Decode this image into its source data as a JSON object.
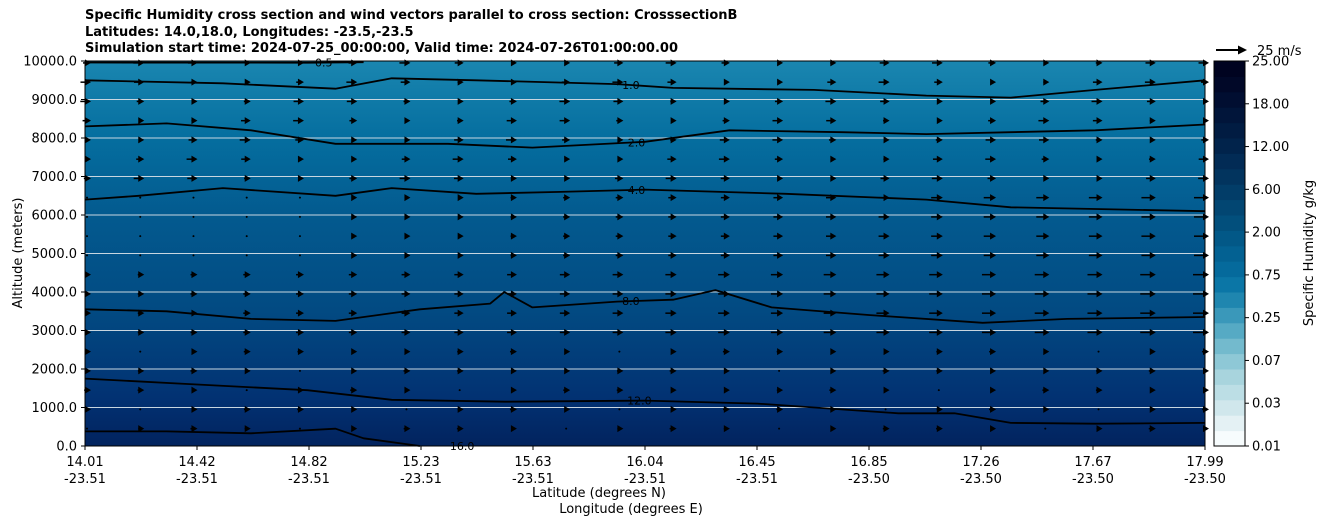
{
  "chart_data": {
    "type": "contour",
    "title_lines": [
      "Specific Humidity cross section and wind vectors parallel to cross section: CrosssectionB",
      "Latitudes: 14.0,18.0, Longitudes: -23.5,-23.5",
      "Simulation start time: 2024-07-25_00:00:00, Valid time: 2024-07-26T01:00:00.00"
    ],
    "xlabel_lines": [
      "Latitude (degrees N)",
      "Longitude (degrees E)"
    ],
    "ylabel": "Altitude (meters)",
    "ylim": [
      0,
      10000
    ],
    "y_ticks": [
      0,
      1000,
      2000,
      3000,
      4000,
      5000,
      6000,
      7000,
      8000,
      9000,
      10000
    ],
    "y_tick_labels": [
      "0.0",
      "1000.0",
      "2000.0",
      "3000.0",
      "4000.0",
      "5000.0",
      "6000.0",
      "7000.0",
      "8000.0",
      "9000.0",
      "10000.0"
    ],
    "grid": "horizontal",
    "x_ticks": [
      {
        "lat": "14.01",
        "lon": "-23.51"
      },
      {
        "lat": "14.42",
        "lon": "-23.51"
      },
      {
        "lat": "14.82",
        "lon": "-23.51"
      },
      {
        "lat": "15.23",
        "lon": "-23.51"
      },
      {
        "lat": "15.63",
        "lon": "-23.51"
      },
      {
        "lat": "16.04",
        "lon": "-23.51"
      },
      {
        "lat": "16.45",
        "lon": "-23.51"
      },
      {
        "lat": "16.85",
        "lon": "-23.50"
      },
      {
        "lat": "17.26",
        "lon": "-23.50"
      },
      {
        "lat": "17.67",
        "lon": "-23.50"
      },
      {
        "lat": "17.99",
        "lon": "-23.50"
      }
    ],
    "colorbar": {
      "label": "Specific Humidity g/kg",
      "tick_labels": [
        "0.01",
        "0.03",
        "0.07",
        "0.25",
        "0.75",
        "2.00",
        "6.00",
        "12.00",
        "18.00",
        "25.00"
      ],
      "colors": [
        "#f7fcfd",
        "#e4f1f4",
        "#d0e7ec",
        "#bcdee5",
        "#a8d4dd",
        "#8ec8d6",
        "#73bacd",
        "#56aac4",
        "#3a98ba",
        "#1f86af",
        "#0b76a6",
        "#056a9c",
        "#036192",
        "#025887",
        "#024f7c",
        "#024672",
        "#023d68",
        "#02345e",
        "#022b55",
        "#01234b",
        "#011c42",
        "#01153a",
        "#010e31",
        "#010828",
        "#000320"
      ]
    },
    "contours": [
      {
        "label": "0.5",
        "label_x": 0.15,
        "points": [
          [
            14.01,
            9960
          ],
          [
            14.8,
            9955
          ],
          [
            15.0,
            9970
          ]
        ]
      },
      {
        "label": "1.0",
        "label_x": 15.95,
        "points": [
          [
            14.01,
            9500
          ],
          [
            14.5,
            9420
          ],
          [
            14.9,
            9280
          ],
          [
            15.1,
            9550
          ],
          [
            15.4,
            9500
          ],
          [
            15.9,
            9400
          ],
          [
            16.1,
            9300
          ],
          [
            16.6,
            9250
          ],
          [
            17.0,
            9100
          ],
          [
            17.3,
            9050
          ],
          [
            17.6,
            9250
          ],
          [
            17.99,
            9500
          ]
        ]
      },
      {
        "label": "2.0",
        "label_x": 15.97,
        "points": [
          [
            14.01,
            8300
          ],
          [
            14.3,
            8380
          ],
          [
            14.6,
            8200
          ],
          [
            14.9,
            7850
          ],
          [
            15.3,
            7850
          ],
          [
            15.6,
            7750
          ],
          [
            16.0,
            7900
          ],
          [
            16.3,
            8200
          ],
          [
            16.7,
            8150
          ],
          [
            17.0,
            8100
          ],
          [
            17.3,
            8150
          ],
          [
            17.6,
            8200
          ],
          [
            17.99,
            8350
          ]
        ]
      },
      {
        "label": "4.0",
        "label_x": 15.97,
        "points": [
          [
            14.01,
            6400
          ],
          [
            14.2,
            6500
          ],
          [
            14.5,
            6700
          ],
          [
            14.9,
            6500
          ],
          [
            15.1,
            6700
          ],
          [
            15.4,
            6550
          ],
          [
            15.7,
            6600
          ],
          [
            16.0,
            6660
          ],
          [
            16.5,
            6550
          ],
          [
            17.0,
            6400
          ],
          [
            17.3,
            6200
          ],
          [
            17.99,
            6100
          ]
        ]
      },
      {
        "label": "8.0",
        "label_x": 15.95,
        "points": [
          [
            14.01,
            3550
          ],
          [
            14.3,
            3500
          ],
          [
            14.6,
            3300
          ],
          [
            14.9,
            3250
          ],
          [
            15.2,
            3550
          ],
          [
            15.45,
            3700
          ],
          [
            15.5,
            4000
          ],
          [
            15.6,
            3600
          ],
          [
            15.9,
            3750
          ],
          [
            16.1,
            3800
          ],
          [
            16.25,
            4050
          ],
          [
            16.45,
            3600
          ],
          [
            16.8,
            3400
          ],
          [
            17.2,
            3200
          ],
          [
            17.5,
            3300
          ],
          [
            17.99,
            3350
          ]
        ]
      },
      {
        "label": "12.0",
        "label_x": 15.98,
        "points": [
          [
            14.01,
            1750
          ],
          [
            14.4,
            1600
          ],
          [
            14.8,
            1450
          ],
          [
            15.1,
            1200
          ],
          [
            15.5,
            1150
          ],
          [
            16.0,
            1180
          ],
          [
            16.4,
            1100
          ],
          [
            16.9,
            850
          ],
          [
            17.1,
            850
          ],
          [
            17.3,
            600
          ],
          [
            17.6,
            580
          ],
          [
            17.99,
            600
          ]
        ]
      },
      {
        "label": "16.0",
        "label_x": 15.35,
        "points": [
          [
            14.01,
            380
          ],
          [
            14.3,
            380
          ],
          [
            14.6,
            330
          ],
          [
            14.9,
            450
          ],
          [
            15.0,
            200
          ],
          [
            15.2,
            0
          ]
        ]
      }
    ],
    "vector_key": {
      "label": "25 m/s",
      "value": 25
    }
  }
}
